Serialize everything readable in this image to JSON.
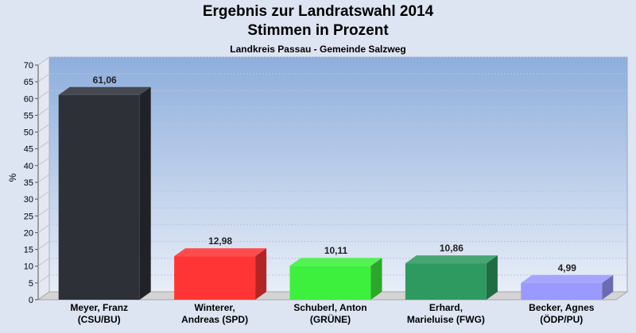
{
  "chart_data": {
    "type": "bar",
    "title": "Ergebnis zur Landratswahl 2014",
    "subtitle": "Stimmen in Prozent",
    "caption": "Landkreis Passau - Gemeinde Salzweg",
    "ylabel": "%",
    "ylim": [
      0,
      70
    ],
    "yticks": [
      0,
      5,
      10,
      15,
      20,
      25,
      30,
      35,
      40,
      45,
      50,
      55,
      60,
      65,
      70
    ],
    "categories": [
      [
        "Meyer, Franz",
        "(CSU/BU)"
      ],
      [
        "Winterer,",
        "Andreas (SPD)"
      ],
      [
        "Schuberl, Anton",
        "(GRÜNE)"
      ],
      [
        "Erhard,",
        "Marieluise (FWG)"
      ],
      [
        "Becker, Agnes",
        "(ÖDP/PU)"
      ]
    ],
    "values": [
      61.06,
      12.98,
      10.11,
      10.86,
      4.99
    ],
    "value_labels": [
      "61,06",
      "12,98",
      "10,11",
      "10,86",
      "4,99"
    ],
    "colors": [
      "#2e3038",
      "#ff3535",
      "#3ef03e",
      "#2e9a60",
      "#9999ff"
    ],
    "grid": true
  }
}
